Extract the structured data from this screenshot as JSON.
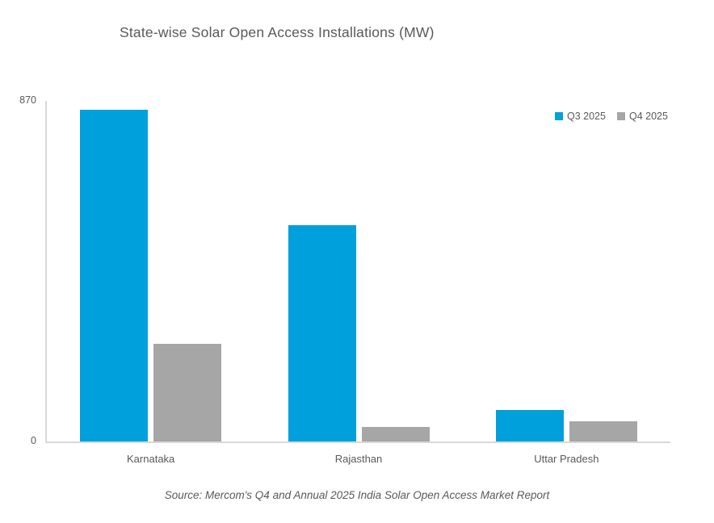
{
  "chart": {
    "title": "State-wise Solar Open Access Installations (MW)",
    "source": "Source: Mercom's Q4 and Annual 2025 India Solar Open Access Market Report",
    "y_axis": {
      "max_label": "870",
      "min_label": "0"
    }
  },
  "chart_data": {
    "type": "bar",
    "title": "State-wise Solar Open Access Installations (MW)",
    "categories": [
      "Karnataka",
      "Rajasthan",
      "Uttar Pradesh"
    ],
    "series": [
      {
        "name": "Q3 2025",
        "color": "#00A0DC",
        "values": [
          847,
          553,
          80
        ]
      },
      {
        "name": "Q4 2025",
        "color": "#A6A6A6",
        "values": [
          249,
          37,
          52
        ]
      }
    ],
    "xlabel": "",
    "ylabel": "",
    "ylim": [
      0,
      870
    ],
    "yticks": [
      0,
      870
    ],
    "grid": false,
    "legend_position": "top-right",
    "annotations": [],
    "source": "Source: Mercom's Q4 and Annual 2025 India Solar Open Access Market Report"
  },
  "colors": {
    "axis_line": "#D9D9D9",
    "text": "#595959",
    "background": "#FFFFFF"
  }
}
